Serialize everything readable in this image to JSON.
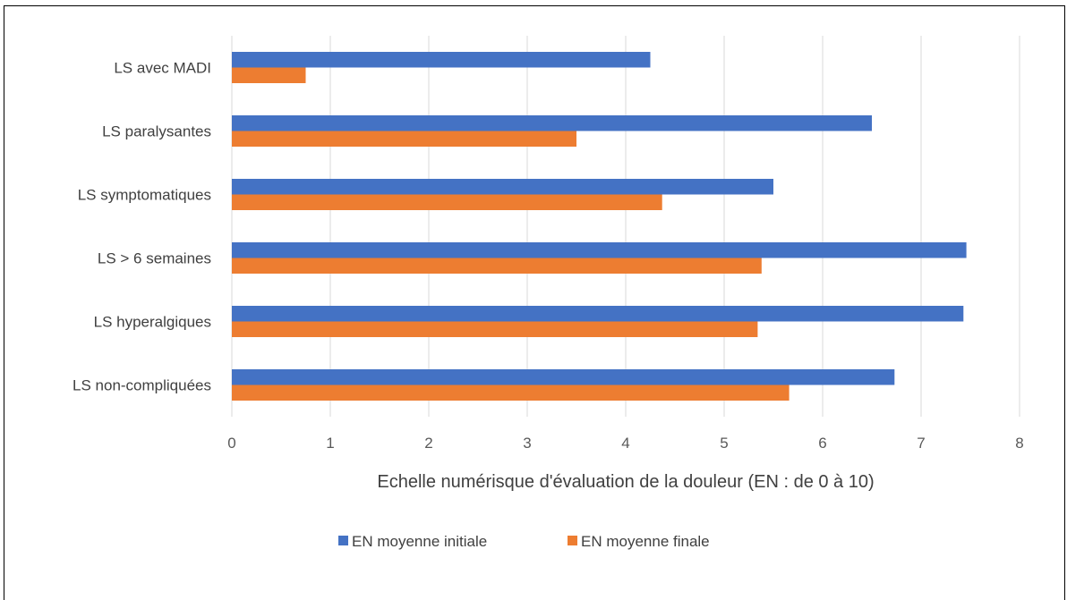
{
  "chart_data": {
    "type": "bar",
    "orientation": "horizontal",
    "categories": [
      "LS avec MADI",
      "LS paralysantes",
      "LS symptomatiques",
      "LS > 6 semaines",
      "LS hyperalgiques",
      "LS non-compliquées"
    ],
    "series": [
      {
        "name": "EN moyenne initiale",
        "color": "#4472C4",
        "values": [
          4.25,
          6.5,
          5.5,
          7.46,
          7.43,
          6.73
        ]
      },
      {
        "name": "EN moyenne finale",
        "color": "#ED7D31",
        "values": [
          0.75,
          3.5,
          4.37,
          5.38,
          5.34,
          5.66
        ]
      }
    ],
    "xlim": [
      0,
      8
    ],
    "xticks": [
      "0",
      "1",
      "2",
      "3",
      "4",
      "5",
      "6",
      "7",
      "8"
    ],
    "xlabel": "Echelle numérisque d'évaluation de la douleur (EN : de 0 à 10)",
    "grid": true,
    "legend_position": "bottom"
  }
}
